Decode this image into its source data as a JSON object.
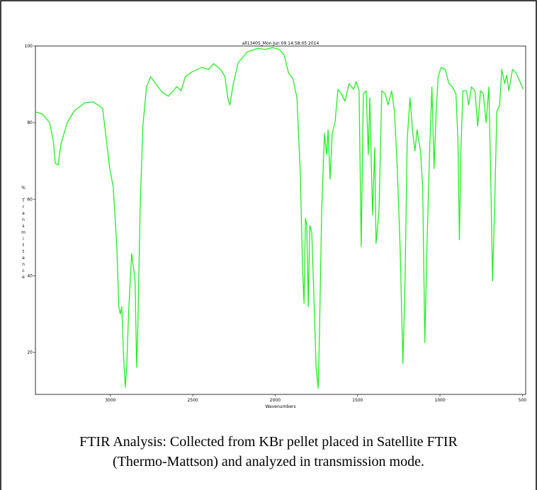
{
  "chart_data": {
    "type": "line",
    "title": "all13405_Mon Jun 09 14:58:05 2014",
    "x_label": "Wavenumbers",
    "y_label": "% Transmittance",
    "color": "#22ee22",
    "xlim": [
      3455,
      480
    ],
    "xticks": [
      3000,
      2500,
      2000,
      1500,
      1000,
      500
    ],
    "ylim": [
      9,
      100
    ],
    "yticks": [
      20,
      40,
      60,
      80,
      100
    ],
    "x": [
      3455,
      3412,
      3369,
      3347,
      3334,
      3317,
      3300,
      3262,
      3219,
      3154,
      3103,
      3047,
      3004,
      2983,
      2961,
      2949,
      2940,
      2931,
      2919,
      2910,
      2901,
      2889,
      2871,
      2859,
      2850,
      2841,
      2833,
      2820,
      2803,
      2781,
      2756,
      2726,
      2683,
      2648,
      2618,
      2597,
      2571,
      2545,
      2503,
      2447,
      2404,
      2374,
      2331,
      2305,
      2288,
      2275,
      2254,
      2224,
      2168,
      2104,
      2061,
      2018,
      1975,
      1945,
      1919,
      1893,
      1868,
      1847,
      1834,
      1825,
      1816,
      1808,
      1799,
      1790,
      1778,
      1765,
      1752,
      1739,
      1731,
      1718,
      1701,
      1688,
      1679,
      1667,
      1654,
      1637,
      1619,
      1598,
      1577,
      1551,
      1525,
      1508,
      1491,
      1478,
      1465,
      1448,
      1435,
      1426,
      1409,
      1396,
      1388,
      1370,
      1353,
      1332,
      1315,
      1293,
      1276,
      1259,
      1242,
      1225,
      1212,
      1199,
      1182,
      1165,
      1152,
      1139,
      1118,
      1105,
      1092,
      1079,
      1062,
      1049,
      1036,
      1023,
      1011,
      993,
      968,
      946,
      925,
      903,
      891,
      882,
      873,
      861,
      839,
      826,
      809,
      788,
      771,
      754,
      737,
      720,
      703,
      689,
      681,
      668,
      655,
      638,
      625,
      607,
      595,
      582,
      560,
      539,
      518,
      496
    ],
    "values": [
      82.8,
      82.2,
      80.0,
      75.4,
      69.4,
      68.9,
      74.4,
      80.0,
      83.1,
      85.2,
      85.4,
      83.7,
      68.0,
      63.3,
      47.6,
      31.9,
      30.0,
      31.9,
      18.0,
      10.9,
      16.1,
      30.9,
      45.7,
      42.0,
      38.3,
      16.1,
      27.2,
      56.9,
      79.1,
      89.3,
      92.0,
      90.2,
      87.8,
      86.9,
      88.3,
      89.4,
      88.3,
      92.0,
      93.3,
      94.4,
      93.9,
      95.4,
      93.9,
      92.0,
      86.5,
      84.6,
      90.2,
      95.7,
      98.5,
      99.4,
      99.1,
      99.6,
      99.1,
      97.6,
      93.0,
      91.5,
      86.5,
      66.1,
      42.0,
      32.8,
      55.0,
      53.1,
      31.9,
      53.1,
      51.3,
      34.6,
      16.1,
      10.6,
      25.4,
      56.9,
      77.2,
      71.7,
      78.1,
      65.2,
      77.2,
      80.0,
      88.7,
      87.5,
      85.6,
      90.2,
      88.7,
      90.7,
      88.3,
      47.6,
      87.5,
      88.3,
      71.7,
      86.5,
      55.9,
      73.5,
      48.5,
      56.9,
      88.3,
      87.5,
      84.6,
      88.3,
      82.8,
      68.0,
      47.6,
      17.0,
      38.3,
      75.4,
      86.5,
      77.2,
      72.6,
      78.1,
      72.6,
      63.3,
      22.6,
      47.6,
      73.5,
      89.3,
      68.0,
      82.8,
      92.0,
      94.4,
      93.9,
      90.2,
      89.3,
      87.5,
      75.4,
      49.4,
      72.6,
      88.3,
      88.3,
      84.6,
      89.3,
      88.3,
      79.1,
      88.3,
      87.5,
      80.0,
      89.3,
      58.7,
      38.7,
      58.7,
      82.8,
      84.6,
      93.9,
      90.2,
      92.4,
      88.3,
      93.9,
      93.0,
      91.1,
      88.7
    ]
  },
  "caption": [
    "FTIR Analysis: Collected from KBr pellet placed in Satellite FTIR",
    "(Thermo-Mattson) and analyzed in transmission mode."
  ]
}
